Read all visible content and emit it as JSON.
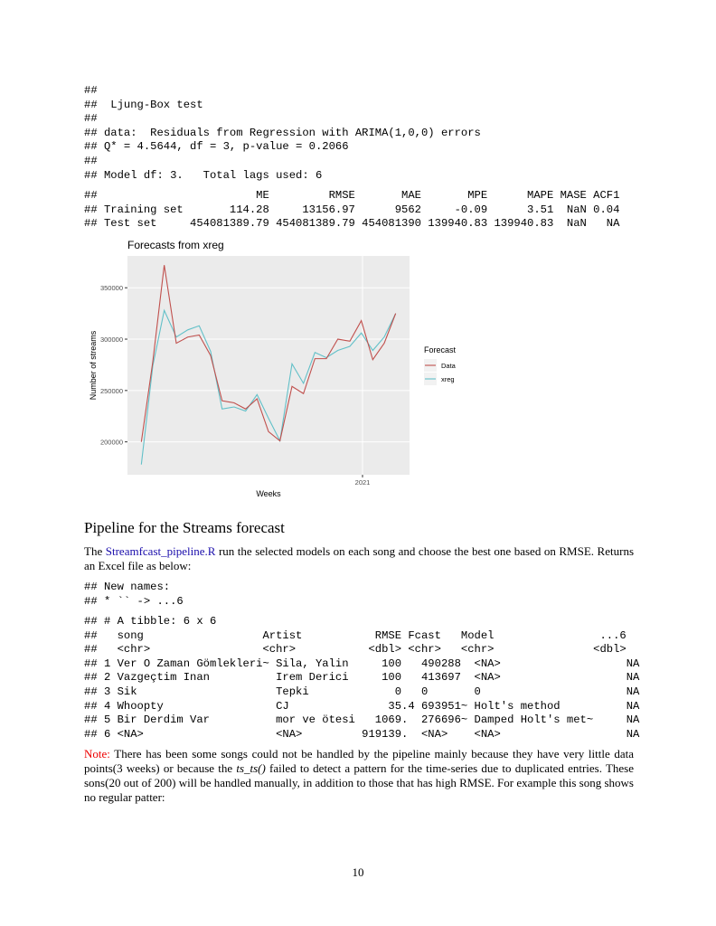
{
  "code_blocks": [
    [
      "##",
      "##  Ljung-Box test",
      "##",
      "## data:  Residuals from Regression with ARIMA(1,0,0) errors",
      "## Q* = 4.5644, df = 3, p-value = 0.2066",
      "##",
      "## Model df: 3.   Total lags used: 6"
    ],
    [
      "##                        ME         RMSE       MAE       MPE      MAPE MASE ACF1",
      "## Training set       114.28     13156.97      9562     -0.09      3.51  NaN 0.04",
      "## Test set     454081389.79 454081389.79 454081390 139940.83 139940.83  NaN   NA"
    ],
    [
      "## New names:",
      "## * `` -> ...6"
    ],
    [
      "## # A tibble: 6 x 6",
      "##   song                  Artist           RMSE Fcast   Model                ...6",
      "##   <chr>                 <chr>           <dbl> <chr>   <chr>               <dbl>",
      "## 1 Ver O Zaman Gömlekleri~ Sila, Yalin     100   490288  <NA>                   NA",
      "## 2 Vazgeçtim Inan          Irem Derici     100   413697  <NA>                   NA",
      "## 3 Sik                     Tepki             0   0       0                      NA",
      "## 4 Whoopty                 CJ               35.4 693951~ Holt's method          NA",
      "## 5 Bir Derdim Var          mor ve ötesi   1069.  276696~ Damped Holt's met~     NA",
      "## 6 <NA>                    <NA>         919139.  <NA>    <NA>                   NA"
    ]
  ],
  "chart_data": {
    "type": "line",
    "title": "Forecasts from xreg",
    "x_label": "Weeks",
    "y_label": "Number of streams",
    "legend_title": "Forecast",
    "x": [
      2020.633,
      2020.652,
      2020.671,
      2020.691,
      2020.71,
      2020.729,
      2020.748,
      2020.767,
      2020.787,
      2020.806,
      2020.825,
      2020.844,
      2020.863,
      2020.883,
      2020.902,
      2020.921,
      2020.94,
      2020.959,
      2020.979,
      2020.998,
      2021.017,
      2021.036,
      2021.055
    ],
    "series": [
      {
        "name": "Data",
        "color": "#c0504d",
        "values": [
          200000,
          278000,
          372000,
          296000,
          302000,
          304000,
          284000,
          240000,
          238000,
          232000,
          242000,
          210000,
          201000,
          254000,
          247000,
          281000,
          281000,
          300000,
          298000,
          318000,
          280000,
          296000,
          325000
        ]
      },
      {
        "name": "xreg",
        "color": "#62c0c8",
        "values": [
          178000,
          274000,
          328000,
          302000,
          309000,
          313000,
          288000,
          232000,
          234000,
          230000,
          246000,
          223000,
          201000,
          276000,
          257000,
          287000,
          282000,
          289000,
          293000,
          306000,
          289000,
          302000,
          325000
        ]
      }
    ],
    "xlim": [
      2020.61,
      2021.078
    ],
    "ylim": [
      168000,
      381000
    ],
    "xticks": [
      {
        "value": 2021,
        "label": "2021"
      }
    ],
    "yticks": [
      200000,
      250000,
      300000,
      350000
    ],
    "grid": true
  },
  "section_heading": "Pipeline for the Streams forecast",
  "intro": {
    "before": "The ",
    "link": "Streamfcast_pipeline.R",
    "after": " run the selected models on each song and choose the best one based on RMSE. Returns an Excel file as below:"
  },
  "note": {
    "label": "Note:",
    "before": " There has been some songs could not be handled by the pipeline mainly because they have very little data points(3 weeks) or because the ",
    "code": "ts_ts()",
    "after": " failed to detect a pattern for the time-series due to duplicated entries. These sons(20 out of 200) will be handled manually, in addition to those that has high RMSE. For example this song shows no regular patter:"
  },
  "page_number": "10"
}
